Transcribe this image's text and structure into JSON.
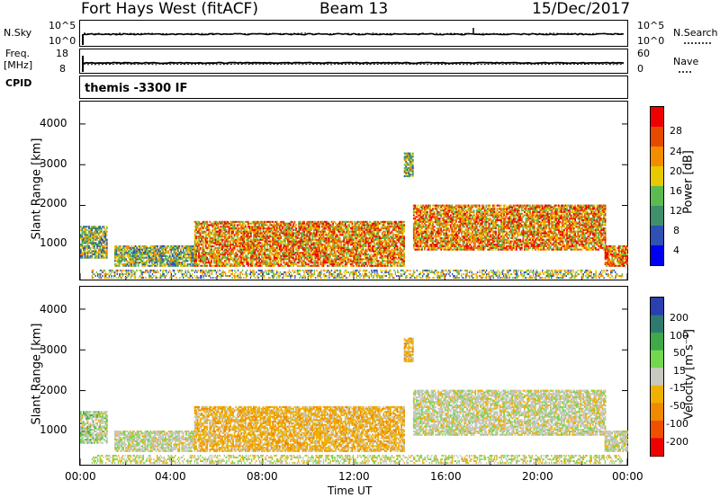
{
  "header": {
    "station": "Fort Hays West (fitACF)",
    "beam": "Beam 13",
    "date": "15/Dec/2017"
  },
  "top_panels": {
    "nsky_label": "N.Sky",
    "nsky_ticks": [
      "10^5",
      "10^0"
    ],
    "nsearch_label": "N.Search",
    "nsearch_ticks": [
      "10^5",
      "10^0"
    ],
    "freq_label": "Freq.",
    "freq_unit": "[MHz]",
    "freq_ticks": [
      "18",
      "8"
    ],
    "nave_label": "Nave",
    "nave_ticks": [
      "60",
      "0"
    ],
    "cpid_label": "CPID",
    "cpid_value": "themis -3300 IF"
  },
  "chart_data": [
    {
      "type": "heatmap",
      "title": "",
      "ylabel": "Slant Range [km]",
      "yticks": [
        "1000",
        "2000",
        "3000",
        "4000"
      ],
      "ylim": [
        180,
        4550
      ],
      "xlim": [
        0,
        24
      ],
      "colorbar_label": "Power [dB]",
      "colorbar_ticks": [
        "4",
        "8",
        "12",
        "16",
        "20",
        "24",
        "28"
      ],
      "colorbar_colors": [
        "#0000ee",
        "#2e51b3",
        "#3f8f6d",
        "#5cbb50",
        "#e8c800",
        "#f28d00",
        "#e64a00",
        "#ee0000"
      ],
      "features": [
        {
          "t0": 0.0,
          "t1": 1.2,
          "r0": 700,
          "r1": 1500,
          "level": "moderate"
        },
        {
          "t0": 1.5,
          "t1": 5.0,
          "r0": 500,
          "r1": 1000,
          "level": "moderate"
        },
        {
          "t0": 5.0,
          "t1": 14.2,
          "r0": 500,
          "r1": 1600,
          "level": "strong"
        },
        {
          "t0": 14.2,
          "t1": 14.6,
          "r0": 2700,
          "r1": 3300,
          "level": "moderate"
        },
        {
          "t0": 14.6,
          "t1": 23.0,
          "r0": 900,
          "r1": 2000,
          "level": "strong"
        },
        {
          "t0": 23.0,
          "t1": 24.0,
          "r0": 500,
          "r1": 1000,
          "level": "strong"
        }
      ]
    },
    {
      "type": "heatmap",
      "title": "",
      "xlabel": "Time UT",
      "ylabel": "Slant Range [km]",
      "yticks": [
        "1000",
        "2000",
        "3000",
        "4000"
      ],
      "xticks": [
        "00:00",
        "04:00",
        "08:00",
        "12:00",
        "16:00",
        "20:00",
        "00:00"
      ],
      "ylim": [
        180,
        4550
      ],
      "xlim": [
        0,
        24
      ],
      "colorbar_label": "Velocity [m s⁻¹]",
      "colorbar_ticks": [
        "200",
        "100",
        "50",
        "15",
        "-15",
        "-50",
        "-100",
        "-200"
      ],
      "colorbar_colors": [
        "#2a3fb0",
        "#2f7a70",
        "#3fa94a",
        "#72d850",
        "#c8c8c0",
        "#f0b000",
        "#f08a00",
        "#ee5000",
        "#ee0000"
      ],
      "features": [
        {
          "t0": 0.0,
          "t1": 1.2,
          "r0": 700,
          "r1": 1500,
          "velocity": "near-zero / positive"
        },
        {
          "t0": 1.5,
          "t1": 5.0,
          "r0": 500,
          "r1": 1000,
          "velocity": "near-zero"
        },
        {
          "t0": 5.0,
          "t1": 14.2,
          "r0": 500,
          "r1": 1600,
          "velocity": "negative"
        },
        {
          "t0": 14.2,
          "t1": 14.6,
          "r0": 2700,
          "r1": 3300,
          "velocity": "negative"
        },
        {
          "t0": 14.6,
          "t1": 23.0,
          "r0": 900,
          "r1": 2000,
          "velocity": "near-zero"
        },
        {
          "t0": 23.0,
          "t1": 24.0,
          "r0": 500,
          "r1": 1000,
          "velocity": "near-zero"
        }
      ]
    }
  ]
}
